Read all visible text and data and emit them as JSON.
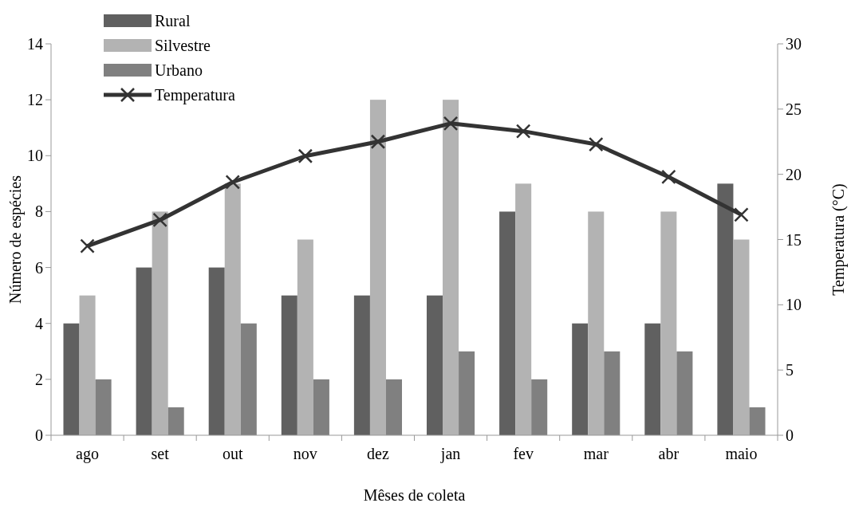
{
  "chart_data": {
    "type": "bar",
    "xlabel": "Mêses de coleta",
    "ylabel": "Número de espécies",
    "y2label": "Temperatura (°C)",
    "categories": [
      "ago",
      "set",
      "out",
      "nov",
      "dez",
      "jan",
      "fev",
      "mar",
      "abr",
      "maio"
    ],
    "series": [
      {
        "name": "Rural",
        "color": "#606060",
        "values": [
          4,
          6,
          6,
          5,
          5,
          5,
          8,
          4,
          4,
          9
        ]
      },
      {
        "name": "Silvestre",
        "color": "#b3b3b3",
        "values": [
          5,
          8,
          9,
          7,
          12,
          12,
          9,
          8,
          8,
          7
        ]
      },
      {
        "name": "Urbano",
        "color": "#808080",
        "values": [
          2,
          1,
          4,
          2,
          2,
          3,
          2,
          3,
          3,
          1
        ]
      },
      {
        "name": "Temperatura",
        "type": "line",
        "axis": "y2",
        "color": "#333333",
        "marker": "cross",
        "values": [
          14.5,
          16.5,
          19.4,
          21.4,
          22.5,
          23.9,
          23.3,
          22.3,
          19.8,
          16.9
        ]
      }
    ],
    "ylim": [
      0,
      14
    ],
    "yticks": [
      0,
      2,
      4,
      6,
      8,
      10,
      12,
      14
    ],
    "y2lim": [
      0,
      30
    ],
    "y2ticks": [
      0,
      5,
      10,
      15,
      20,
      25,
      30
    ],
    "legend": "top left",
    "grid": false
  }
}
